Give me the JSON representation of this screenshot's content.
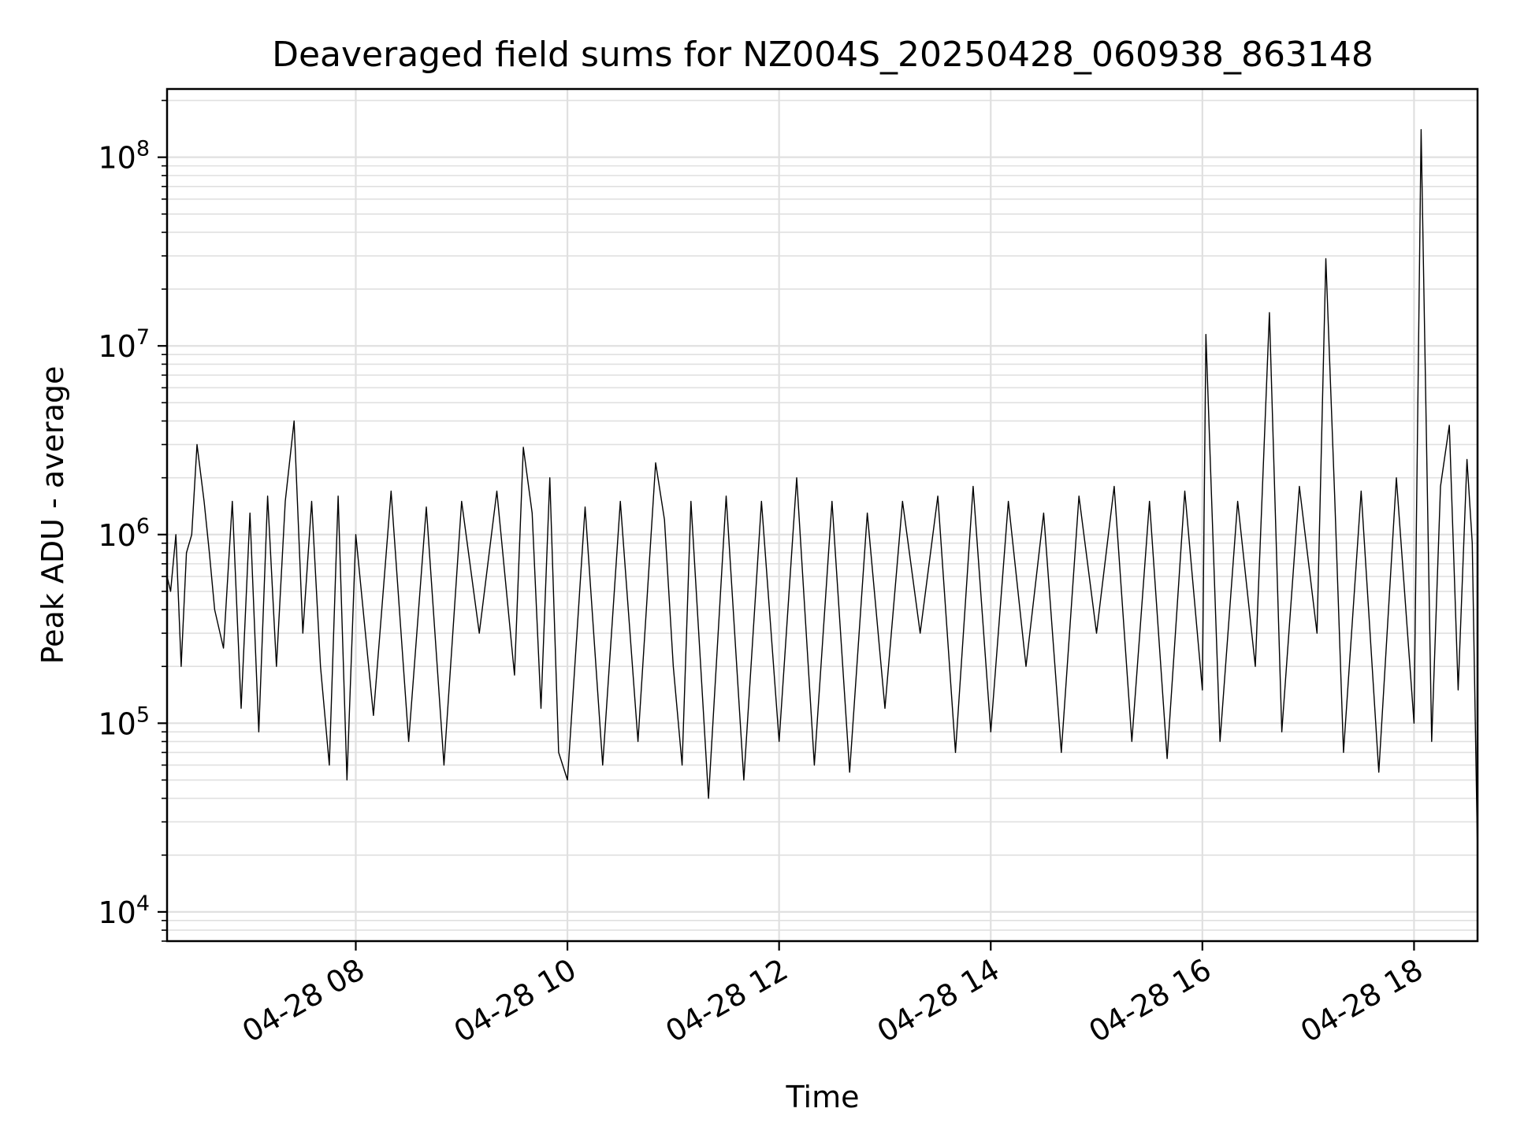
{
  "chart_data": {
    "type": "line",
    "title": "Deaveraged field sums for NZ004S_20250428_060938_863148",
    "xlabel": "Time",
    "ylabel": "Peak ADU - average",
    "yscale": "log",
    "ylim": [
      7000,
      230000000
    ],
    "xlim": [
      "2025-04-28 06:13",
      "2025-04-28 18:36"
    ],
    "grid": true,
    "legend": "none",
    "line_color": "#000000",
    "grid_color": "#e0e0e0",
    "x_ticks": [
      "04-28 08",
      "04-28 10",
      "04-28 12",
      "04-28 14",
      "04-28 16",
      "04-28 18"
    ],
    "x_tick_times": [
      "2025-04-28 08:00",
      "2025-04-28 10:00",
      "2025-04-28 12:00",
      "2025-04-28 14:00",
      "2025-04-28 16:00",
      "2025-04-28 18:00"
    ],
    "y_ticks": [
      {
        "value": 10000,
        "base": "10",
        "exp": "4"
      },
      {
        "value": 100000,
        "base": "10",
        "exp": "5"
      },
      {
        "value": 1000000,
        "base": "10",
        "exp": "6"
      },
      {
        "value": 10000000,
        "base": "10",
        "exp": "7"
      },
      {
        "value": 100000000,
        "base": "10",
        "exp": "8"
      }
    ],
    "series": [
      {
        "x": [
          "2025-04-28 06:13",
          "2025-04-28 06:15",
          "2025-04-28 06:18",
          "2025-04-28 06:21",
          "2025-04-28 06:24",
          "2025-04-28 06:27",
          "2025-04-28 06:30",
          "2025-04-28 06:34",
          "2025-04-28 06:37",
          "2025-04-28 06:40",
          "2025-04-28 06:45",
          "2025-04-28 06:50",
          "2025-04-28 06:55",
          "2025-04-28 07:00",
          "2025-04-28 07:05",
          "2025-04-28 07:10",
          "2025-04-28 07:15",
          "2025-04-28 07:20",
          "2025-04-28 07:25",
          "2025-04-28 07:30",
          "2025-04-28 07:35",
          "2025-04-28 07:40",
          "2025-04-28 07:45",
          "2025-04-28 07:50",
          "2025-04-28 07:55",
          "2025-04-28 08:00",
          "2025-04-28 08:10",
          "2025-04-28 08:20",
          "2025-04-28 08:30",
          "2025-04-28 08:40",
          "2025-04-28 08:50",
          "2025-04-28 09:00",
          "2025-04-28 09:10",
          "2025-04-28 09:20",
          "2025-04-28 09:30",
          "2025-04-28 09:35",
          "2025-04-28 09:40",
          "2025-04-28 09:45",
          "2025-04-28 09:50",
          "2025-04-28 09:55",
          "2025-04-28 10:00",
          "2025-04-28 10:10",
          "2025-04-28 10:20",
          "2025-04-28 10:30",
          "2025-04-28 10:40",
          "2025-04-28 10:50",
          "2025-04-28 10:55",
          "2025-04-28 11:00",
          "2025-04-28 11:05",
          "2025-04-28 11:10",
          "2025-04-28 11:20",
          "2025-04-28 11:30",
          "2025-04-28 11:40",
          "2025-04-28 11:50",
          "2025-04-28 12:00",
          "2025-04-28 12:10",
          "2025-04-28 12:20",
          "2025-04-28 12:30",
          "2025-04-28 12:40",
          "2025-04-28 12:50",
          "2025-04-28 13:00",
          "2025-04-28 13:10",
          "2025-04-28 13:20",
          "2025-04-28 13:30",
          "2025-04-28 13:40",
          "2025-04-28 13:50",
          "2025-04-28 14:00",
          "2025-04-28 14:10",
          "2025-04-28 14:20",
          "2025-04-28 14:30",
          "2025-04-28 14:40",
          "2025-04-28 14:50",
          "2025-04-28 15:00",
          "2025-04-28 15:10",
          "2025-04-28 15:20",
          "2025-04-28 15:30",
          "2025-04-28 15:40",
          "2025-04-28 15:50",
          "2025-04-28 16:00",
          "2025-04-28 16:02",
          "2025-04-28 16:10",
          "2025-04-28 16:20",
          "2025-04-28 16:30",
          "2025-04-28 16:38",
          "2025-04-28 16:45",
          "2025-04-28 16:55",
          "2025-04-28 17:05",
          "2025-04-28 17:10",
          "2025-04-28 17:15",
          "2025-04-28 17:20",
          "2025-04-28 17:30",
          "2025-04-28 17:40",
          "2025-04-28 17:50",
          "2025-04-28 18:00",
          "2025-04-28 18:04",
          "2025-04-28 18:10",
          "2025-04-28 18:15",
          "2025-04-28 18:20",
          "2025-04-28 18:25",
          "2025-04-28 18:30",
          "2025-04-28 18:33",
          "2025-04-28 18:36"
        ],
        "y": [
          600000,
          500000,
          1000000,
          200000,
          800000,
          1000000,
          3000000,
          1500000,
          800000,
          400000,
          250000,
          1500000,
          120000,
          1300000,
          90000,
          1600000,
          200000,
          1500000,
          4000000,
          300000,
          1500000,
          200000,
          60000,
          1600000,
          50000,
          1000000,
          110000,
          1700000,
          80000,
          1400000,
          60000,
          1500000,
          300000,
          1700000,
          180000,
          2900000,
          1300000,
          120000,
          2000000,
          70000,
          50000,
          1400000,
          60000,
          1500000,
          80000,
          2400000,
          1200000,
          200000,
          60000,
          1500000,
          40000,
          1600000,
          50000,
          1500000,
          80000,
          2000000,
          60000,
          1500000,
          55000,
          1300000,
          120000,
          1500000,
          300000,
          1600000,
          70000,
          1800000,
          90000,
          1500000,
          200000,
          1300000,
          70000,
          1600000,
          300000,
          1800000,
          80000,
          1500000,
          65000,
          1700000,
          150000,
          11500000,
          80000,
          1500000,
          200000,
          15000000,
          90000,
          1800000,
          300000,
          29000000,
          1600000,
          70000,
          1700000,
          55000,
          2000000,
          100000,
          140000000,
          80000,
          1800000,
          3800000,
          150000,
          2500000,
          900000,
          20000
        ]
      }
    ]
  }
}
